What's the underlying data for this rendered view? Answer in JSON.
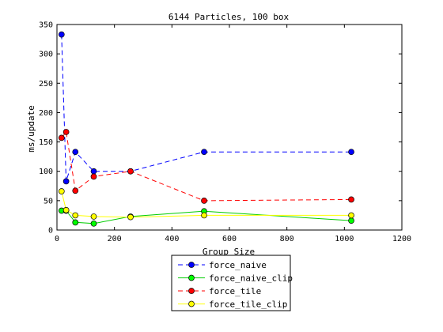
{
  "chart_data": {
    "type": "line",
    "title": "6144 Particles, 100 box",
    "xlabel": "Group Size",
    "ylabel": "ms/update",
    "xlim": [
      0,
      1200
    ],
    "ylim": [
      0,
      350
    ],
    "xticks": [
      "0",
      "200",
      "400",
      "600",
      "800",
      "1000",
      "1200"
    ],
    "yticks": [
      "0",
      "50",
      "100",
      "150",
      "200",
      "250",
      "300",
      "350"
    ],
    "grid": false,
    "legend_position": "bottom-center, outside plot",
    "x": [
      16,
      32,
      64,
      128,
      256,
      512,
      1024
    ],
    "series": [
      {
        "name": "force_naive",
        "color": "#0000ff",
        "marker_color": "#0000ff",
        "linestyle": "dashed",
        "values": [
          333,
          83,
          133,
          100,
          100,
          133,
          133
        ]
      },
      {
        "name": "force_naive_clip",
        "color": "#00cc00",
        "marker_color": "#00ff00",
        "linestyle": "solid",
        "values": [
          33,
          33,
          13,
          11,
          23,
          32,
          16
        ]
      },
      {
        "name": "force_tile",
        "color": "#ff0000",
        "marker_color": "#ff0000",
        "linestyle": "dashed",
        "values": [
          157,
          167,
          67,
          91,
          100,
          50,
          52
        ]
      },
      {
        "name": "force_tile_clip",
        "color": "#ffff00",
        "marker_color": "#ffff00",
        "linestyle": "solid",
        "values": [
          66,
          34,
          25,
          23,
          22,
          25,
          25
        ]
      }
    ]
  }
}
